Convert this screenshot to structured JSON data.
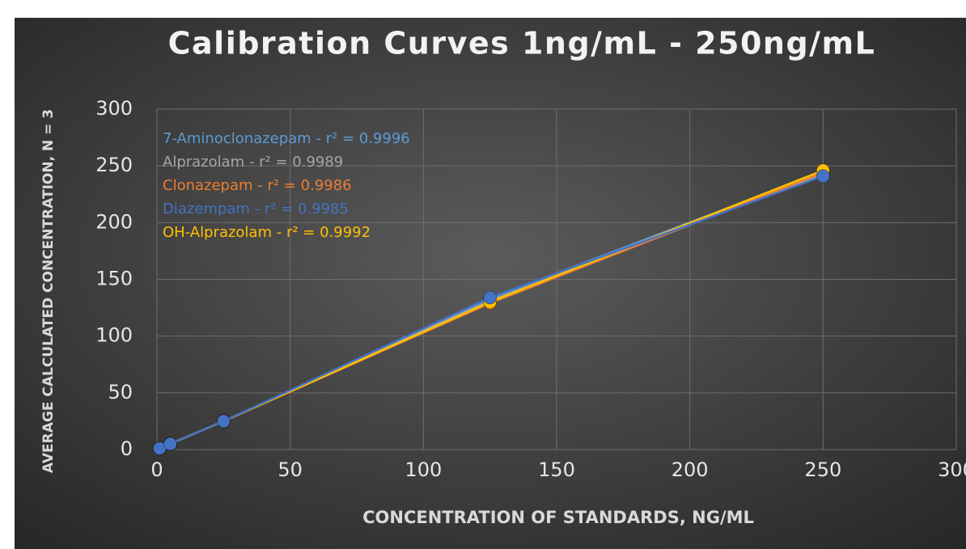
{
  "chart_data": {
    "type": "scatter",
    "title": "Calibration Curves 1ng/mL - 250ng/mL",
    "x_label": "CONCENTRATION OF STANDARDS, NG/ML",
    "y_label": "AVERAGE CALCULATED CONCENTRATION, N = 3",
    "x": [
      1,
      5,
      25,
      125,
      250
    ],
    "series": [
      {
        "label": "7-Aminoclonazepam - r² = 0.9996",
        "color": "#5b9bd5",
        "values": [
          1,
          5,
          25,
          133,
          245
        ]
      },
      {
        "label": "Alprazolam - r² = 0.9989",
        "color": "#a5a5a5",
        "values": [
          1,
          5,
          25,
          131,
          243
        ]
      },
      {
        "label": "Clonazepam - r² = 0.9986",
        "color": "#ed7d31",
        "values": [
          1,
          5,
          25,
          129,
          244
        ]
      },
      {
        "label": "OH-Alprazolam - r² = 0.9992",
        "color": "#ffc000",
        "values": [
          1,
          5,
          25,
          130,
          246
        ]
      },
      {
        "label": "Diazempam - r² = 0.9985",
        "color": "#4472c4",
        "values": [
          1,
          5,
          25,
          134,
          241
        ]
      }
    ],
    "xlim": [
      0,
      300
    ],
    "xticks": [
      0,
      50,
      100,
      150,
      200,
      250,
      300
    ],
    "ylim": [
      0,
      300
    ],
    "yticks": [
      0,
      50,
      100,
      150,
      200,
      250,
      300
    ],
    "grid": true
  }
}
